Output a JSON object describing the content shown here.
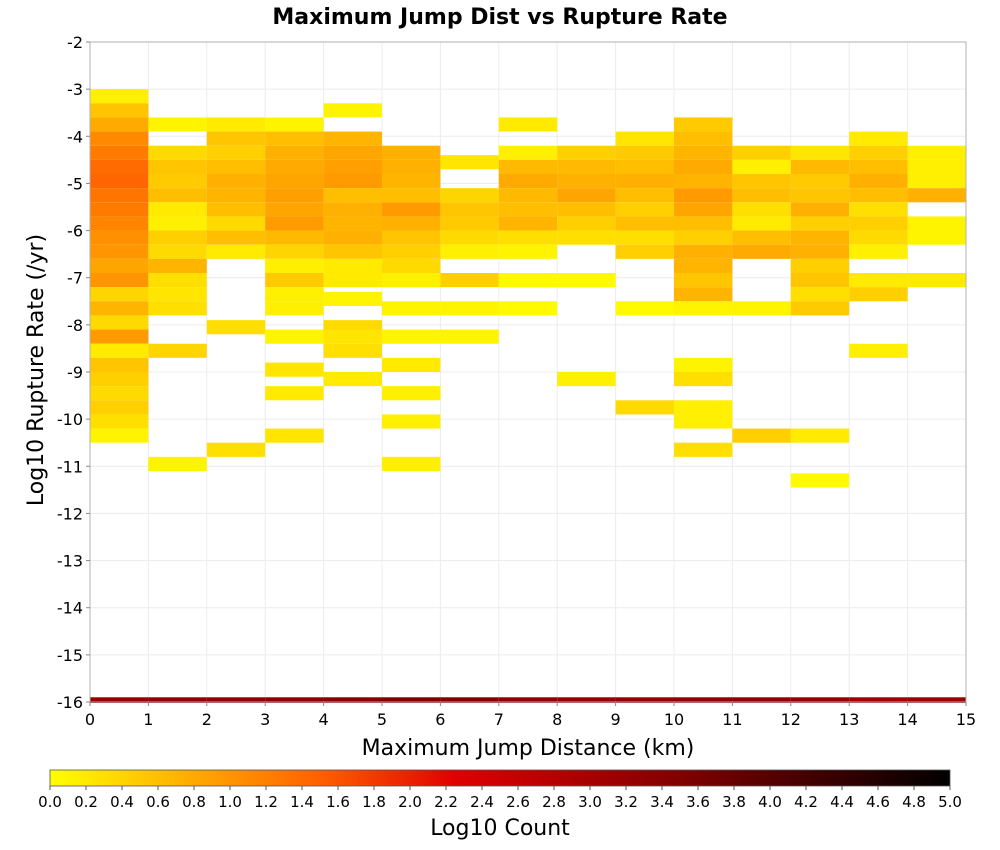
{
  "chart_data": {
    "type": "heatmap",
    "title": "Maximum Jump Dist vs Rupture Rate",
    "xlabel": "Maximum Jump Distance (km)",
    "ylabel": "Log10 Rupture Rate (/yr)",
    "xlim": [
      0,
      15
    ],
    "ylim": [
      -16,
      -2
    ],
    "x_ticks": [
      "0",
      "1",
      "2",
      "3",
      "4",
      "5",
      "6",
      "7",
      "8",
      "9",
      "10",
      "11",
      "12",
      "13",
      "14",
      "15"
    ],
    "y_ticks": [
      "-2",
      "-3",
      "-4",
      "-5",
      "-6",
      "-7",
      "-8",
      "-9",
      "-10",
      "-11",
      "-12",
      "-13",
      "-14",
      "-15",
      "-16"
    ],
    "x_bin_width": 1,
    "y_bin_height": 0.3,
    "grid": true,
    "colorbar": {
      "label": "Log10 Count",
      "min": 0.0,
      "max": 5.0,
      "ticks": [
        "0.0",
        "0.2",
        "0.4",
        "0.6",
        "0.8",
        "1.0",
        "1.2",
        "1.4",
        "1.6",
        "1.8",
        "2.0",
        "2.2",
        "2.4",
        "2.6",
        "2.8",
        "3.0",
        "3.2",
        "3.4",
        "3.6",
        "3.8",
        "4.0",
        "4.2",
        "4.4",
        "4.6",
        "4.8",
        "5.0"
      ],
      "colors": [
        "#ffff00",
        "#ff6000",
        "#e00000",
        "#800000",
        "#000000"
      ]
    },
    "cells": [
      [
        0,
        -3.15,
        0.15
      ],
      [
        0,
        -3.45,
        0.55
      ],
      [
        0,
        -3.75,
        0.8
      ],
      [
        0,
        -4.05,
        1.1
      ],
      [
        0,
        -4.35,
        1.25
      ],
      [
        0,
        -4.65,
        1.4
      ],
      [
        0,
        -4.95,
        1.45
      ],
      [
        0,
        -5.25,
        1.3
      ],
      [
        0,
        -5.55,
        1.25
      ],
      [
        0,
        -5.85,
        1.15
      ],
      [
        0,
        -6.15,
        1.05
      ],
      [
        0,
        -6.45,
        1.0
      ],
      [
        0,
        -6.75,
        0.85
      ],
      [
        0,
        -7.05,
        1.0
      ],
      [
        0,
        -7.35,
        0.4
      ],
      [
        0,
        -7.65,
        0.7
      ],
      [
        0,
        -7.95,
        0.35
      ],
      [
        0,
        -8.25,
        0.95
      ],
      [
        0,
        -8.55,
        0.2
      ],
      [
        0,
        -8.85,
        0.55
      ],
      [
        0,
        -9.15,
        0.45
      ],
      [
        0,
        -9.45,
        0.35
      ],
      [
        0,
        -9.75,
        0.45
      ],
      [
        0,
        -10.05,
        0.3
      ],
      [
        0,
        -10.35,
        0.1
      ],
      [
        1,
        -3.75,
        0.1
      ],
      [
        1,
        -4.35,
        0.35
      ],
      [
        1,
        -4.65,
        0.55
      ],
      [
        1,
        -4.95,
        0.5
      ],
      [
        1,
        -5.25,
        0.6
      ],
      [
        1,
        -5.55,
        0.2
      ],
      [
        1,
        -5.85,
        0.15
      ],
      [
        1,
        -6.15,
        0.45
      ],
      [
        1,
        -6.45,
        0.35
      ],
      [
        1,
        -6.75,
        0.7
      ],
      [
        1,
        -7.05,
        0.3
      ],
      [
        1,
        -7.35,
        0.25
      ],
      [
        1,
        -7.65,
        0.3
      ],
      [
        1,
        -8.55,
        0.4
      ],
      [
        1,
        -10.95,
        0.1
      ],
      [
        2,
        -3.75,
        0.2
      ],
      [
        2,
        -4.05,
        0.55
      ],
      [
        2,
        -4.35,
        0.45
      ],
      [
        2,
        -4.65,
        0.6
      ],
      [
        2,
        -4.95,
        0.75
      ],
      [
        2,
        -5.25,
        0.7
      ],
      [
        2,
        -5.55,
        0.6
      ],
      [
        2,
        -5.85,
        0.35
      ],
      [
        2,
        -6.15,
        0.6
      ],
      [
        2,
        -6.45,
        0.2
      ],
      [
        2,
        -8.05,
        0.3
      ],
      [
        2,
        -10.65,
        0.3
      ],
      [
        3,
        -3.75,
        0.1
      ],
      [
        3,
        -4.05,
        0.6
      ],
      [
        3,
        -4.35,
        0.75
      ],
      [
        3,
        -4.65,
        0.8
      ],
      [
        3,
        -4.95,
        0.85
      ],
      [
        3,
        -5.25,
        0.9
      ],
      [
        3,
        -5.55,
        0.85
      ],
      [
        3,
        -5.85,
        0.95
      ],
      [
        3,
        -6.15,
        0.65
      ],
      [
        3,
        -6.45,
        0.4
      ],
      [
        3,
        -6.75,
        0.15
      ],
      [
        3,
        -7.05,
        0.5
      ],
      [
        3,
        -7.35,
        0.15
      ],
      [
        3,
        -7.65,
        0.15
      ],
      [
        3,
        -8.25,
        0.1
      ],
      [
        3,
        -8.95,
        0.25
      ],
      [
        3,
        -9.45,
        0.2
      ],
      [
        3,
        -10.35,
        0.25
      ],
      [
        4,
        -3.45,
        0.1
      ],
      [
        4,
        -4.05,
        0.7
      ],
      [
        4,
        -4.35,
        0.85
      ],
      [
        4,
        -4.65,
        0.9
      ],
      [
        4,
        -4.95,
        0.95
      ],
      [
        4,
        -5.25,
        0.6
      ],
      [
        4,
        -5.55,
        0.75
      ],
      [
        4,
        -5.85,
        0.7
      ],
      [
        4,
        -6.15,
        0.75
      ],
      [
        4,
        -6.45,
        0.55
      ],
      [
        4,
        -6.75,
        0.2
      ],
      [
        4,
        -7.05,
        0.2
      ],
      [
        4,
        -7.45,
        0.1
      ],
      [
        4,
        -8.05,
        0.35
      ],
      [
        4,
        -8.25,
        0.25
      ],
      [
        4,
        -8.55,
        0.3
      ],
      [
        4,
        -9.15,
        0.2
      ],
      [
        5,
        -4.35,
        0.75
      ],
      [
        5,
        -4.65,
        0.75
      ],
      [
        5,
        -4.95,
        0.7
      ],
      [
        5,
        -5.25,
        0.6
      ],
      [
        5,
        -5.55,
        0.95
      ],
      [
        5,
        -5.85,
        0.75
      ],
      [
        5,
        -6.15,
        0.55
      ],
      [
        5,
        -6.45,
        0.45
      ],
      [
        5,
        -6.75,
        0.35
      ],
      [
        5,
        -7.05,
        0.15
      ],
      [
        5,
        -7.65,
        0.1
      ],
      [
        5,
        -8.25,
        0.1
      ],
      [
        5,
        -8.85,
        0.2
      ],
      [
        5,
        -9.45,
        0.15
      ],
      [
        5,
        -10.05,
        0.15
      ],
      [
        5,
        -10.95,
        0.15
      ],
      [
        6,
        -4.55,
        0.25
      ],
      [
        6,
        -5.25,
        0.4
      ],
      [
        6,
        -5.55,
        0.55
      ],
      [
        6,
        -5.85,
        0.5
      ],
      [
        6,
        -6.15,
        0.35
      ],
      [
        6,
        -6.45,
        0.15
      ],
      [
        6,
        -7.05,
        0.45
      ],
      [
        6,
        -7.65,
        0.1
      ],
      [
        6,
        -8.25,
        0.1
      ],
      [
        7,
        -3.75,
        0.2
      ],
      [
        7,
        -4.35,
        0.15
      ],
      [
        7,
        -4.65,
        0.65
      ],
      [
        7,
        -4.95,
        0.8
      ],
      [
        7,
        -5.25,
        0.65
      ],
      [
        7,
        -5.55,
        0.6
      ],
      [
        7,
        -5.85,
        0.7
      ],
      [
        7,
        -6.15,
        0.3
      ],
      [
        7,
        -6.45,
        0.1
      ],
      [
        7,
        -7.05,
        0.05
      ],
      [
        7,
        -7.65,
        0.05
      ],
      [
        8,
        -4.35,
        0.45
      ],
      [
        8,
        -4.65,
        0.65
      ],
      [
        8,
        -4.95,
        0.75
      ],
      [
        8,
        -5.25,
        0.85
      ],
      [
        8,
        -5.55,
        0.6
      ],
      [
        8,
        -5.85,
        0.45
      ],
      [
        8,
        -6.15,
        0.3
      ],
      [
        8,
        -7.05,
        0.05
      ],
      [
        8,
        -9.15,
        0.15
      ],
      [
        9,
        -4.05,
        0.25
      ],
      [
        9,
        -4.35,
        0.5
      ],
      [
        9,
        -4.65,
        0.6
      ],
      [
        9,
        -4.95,
        0.75
      ],
      [
        9,
        -5.25,
        0.6
      ],
      [
        9,
        -5.55,
        0.45
      ],
      [
        9,
        -5.85,
        0.6
      ],
      [
        9,
        -6.15,
        0.3
      ],
      [
        9,
        -6.45,
        0.45
      ],
      [
        9,
        -7.65,
        0.05
      ],
      [
        9,
        -9.75,
        0.35
      ],
      [
        10,
        -3.75,
        0.5
      ],
      [
        10,
        -4.05,
        0.6
      ],
      [
        10,
        -4.35,
        0.7
      ],
      [
        10,
        -4.65,
        0.8
      ],
      [
        10,
        -4.95,
        0.7
      ],
      [
        10,
        -5.25,
        0.95
      ],
      [
        10,
        -5.55,
        0.85
      ],
      [
        10,
        -5.85,
        0.6
      ],
      [
        10,
        -6.15,
        0.45
      ],
      [
        10,
        -6.45,
        0.75
      ],
      [
        10,
        -6.75,
        0.7
      ],
      [
        10,
        -7.05,
        0.55
      ],
      [
        10,
        -7.35,
        0.7
      ],
      [
        10,
        -7.65,
        0.1
      ],
      [
        10,
        -8.85,
        0.1
      ],
      [
        10,
        -9.15,
        0.3
      ],
      [
        10,
        -9.75,
        0.15
      ],
      [
        10,
        -10.05,
        0.15
      ],
      [
        10,
        -10.65,
        0.3
      ],
      [
        11,
        -4.35,
        0.45
      ],
      [
        11,
        -4.65,
        0.15
      ],
      [
        11,
        -4.95,
        0.55
      ],
      [
        11,
        -5.25,
        0.6
      ],
      [
        11,
        -5.55,
        0.3
      ],
      [
        11,
        -5.85,
        0.2
      ],
      [
        11,
        -6.15,
        0.6
      ],
      [
        11,
        -6.45,
        0.8
      ],
      [
        11,
        -7.65,
        0.1
      ],
      [
        11,
        -10.35,
        0.45
      ],
      [
        12,
        -4.35,
        0.25
      ],
      [
        12,
        -4.65,
        0.65
      ],
      [
        12,
        -4.95,
        0.5
      ],
      [
        12,
        -5.25,
        0.55
      ],
      [
        12,
        -5.55,
        0.75
      ],
      [
        12,
        -5.85,
        0.45
      ],
      [
        12,
        -6.15,
        0.7
      ],
      [
        12,
        -6.45,
        0.75
      ],
      [
        12,
        -6.75,
        0.45
      ],
      [
        12,
        -7.05,
        0.55
      ],
      [
        12,
        -7.35,
        0.3
      ],
      [
        12,
        -7.65,
        0.5
      ],
      [
        12,
        -10.35,
        0.2
      ],
      [
        12,
        -11.3,
        0.05
      ],
      [
        13,
        -4.05,
        0.2
      ],
      [
        13,
        -4.35,
        0.45
      ],
      [
        13,
        -4.65,
        0.6
      ],
      [
        13,
        -4.95,
        0.75
      ],
      [
        13,
        -5.25,
        0.6
      ],
      [
        13,
        -5.55,
        0.3
      ],
      [
        13,
        -5.85,
        0.45
      ],
      [
        13,
        -6.15,
        0.35
      ],
      [
        13,
        -6.45,
        0.15
      ],
      [
        13,
        -7.05,
        0.2
      ],
      [
        13,
        -7.35,
        0.45
      ],
      [
        13,
        -8.55,
        0.15
      ],
      [
        14,
        -4.35,
        0.15
      ],
      [
        14,
        -4.65,
        0.15
      ],
      [
        14,
        -4.95,
        0.15
      ],
      [
        14,
        -5.25,
        0.75
      ],
      [
        14,
        -5.85,
        0.1
      ],
      [
        14,
        -6.15,
        0.1
      ],
      [
        14,
        -7.05,
        0.2
      ]
    ],
    "bottom_row": {
      "y": -16,
      "values": [
        3.2,
        3.3,
        3.3,
        3.35,
        3.4,
        3.5,
        3.45,
        3.3,
        3.2,
        3.25,
        3.3,
        3.3,
        3.2,
        3.1,
        3.15
      ]
    }
  }
}
